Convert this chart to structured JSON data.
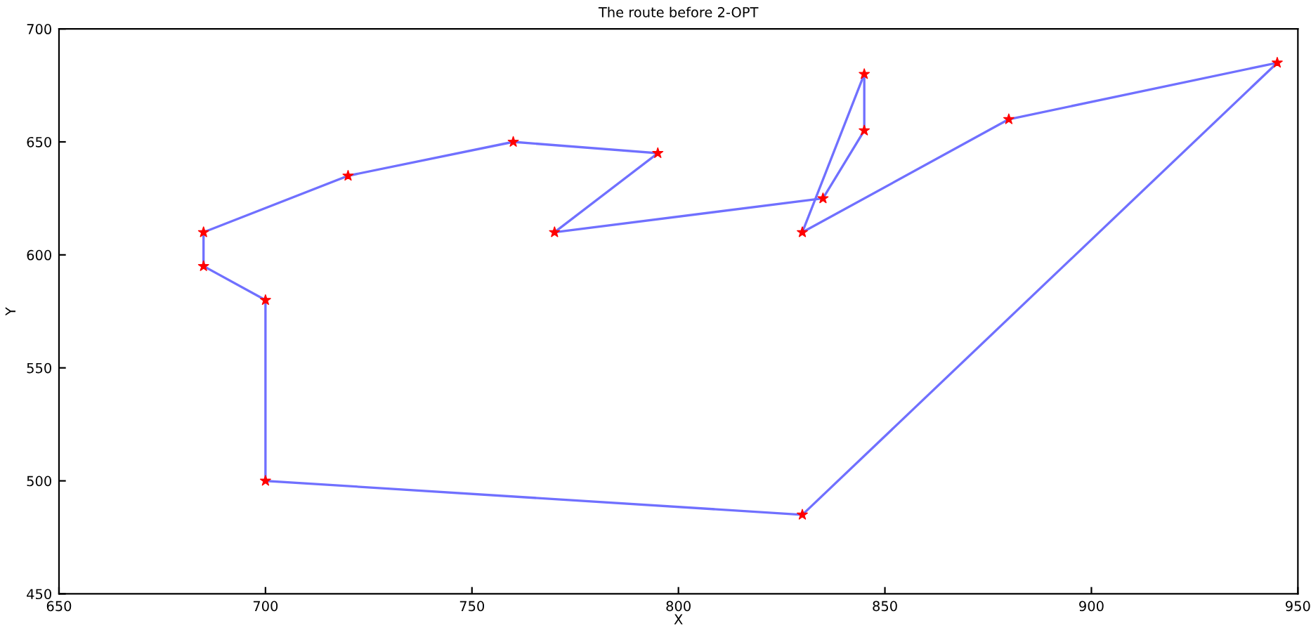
{
  "chart_data": {
    "type": "line",
    "title": "The route before 2-OPT",
    "xlabel": "X",
    "ylabel": "Y",
    "xlim": [
      650,
      950
    ],
    "xticks": [
      650,
      700,
      750,
      800,
      850,
      900,
      950
    ],
    "ylim": [
      450,
      700
    ],
    "yticks": [
      450,
      500,
      550,
      600,
      650,
      700
    ],
    "grid": false,
    "legend": false,
    "line_style": "solid",
    "series": [
      {
        "color": "#7070ff",
        "marker": "none",
        "x": [
          700,
          830,
          945
        ],
        "values": [
          500,
          485,
          685
        ]
      },
      {
        "color": "#7070ff",
        "marker": "none",
        "x": [
          945,
          880,
          830
        ],
        "values": [
          685,
          660,
          610
        ]
      },
      {
        "color": "#7070ff",
        "marker": "none",
        "x": [
          830,
          845
        ],
        "values": [
          610,
          680
        ]
      },
      {
        "color": "#7070ff",
        "marker": "none",
        "x": [
          845,
          845
        ],
        "values": [
          680,
          655
        ]
      },
      {
        "color": "#7070ff",
        "marker": "none",
        "x": [
          845,
          835,
          770
        ],
        "values": [
          655,
          625,
          610
        ]
      },
      {
        "color": "#7070ff",
        "marker": "none",
        "x": [
          770,
          795
        ],
        "values": [
          610,
          645
        ]
      },
      {
        "color": "#7070ff",
        "marker": "none",
        "x": [
          795,
          760,
          720,
          685
        ],
        "values": [
          645,
          650,
          635,
          610
        ]
      },
      {
        "color": "#7070ff",
        "marker": "none",
        "x": [
          685,
          685
        ],
        "values": [
          610,
          595
        ]
      },
      {
        "color": "#7070ff",
        "marker": "none",
        "x": [
          685,
          700
        ],
        "values": [
          595,
          580
        ]
      },
      {
        "color": "#7070ff",
        "marker": "none",
        "x": [
          700,
          700
        ],
        "values": [
          580,
          500
        ]
      },
      {
        "type": "scatter",
        "color": "#ff0000",
        "marker": "star",
        "x": [
          700,
          830,
          945,
          880,
          830,
          845,
          845,
          835,
          770,
          795,
          760,
          720,
          685,
          685,
          700
        ],
        "values": [
          500,
          485,
          685,
          660,
          610,
          680,
          655,
          625,
          610,
          645,
          650,
          635,
          610,
          595,
          580
        ]
      }
    ]
  }
}
